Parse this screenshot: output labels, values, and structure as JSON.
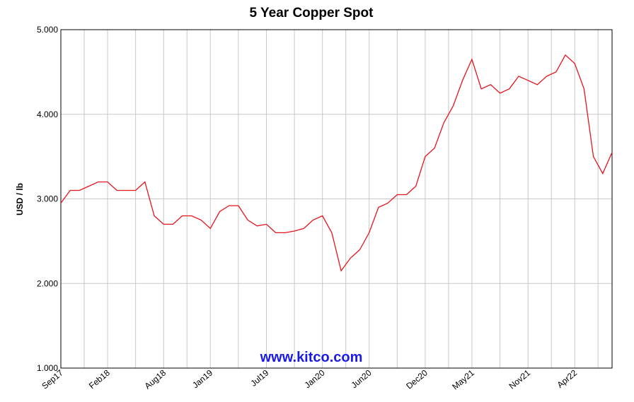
{
  "chart_data": {
    "type": "line",
    "title": "5 Year Copper Spot",
    "y_label": "USD / lb",
    "annotation": "www.kitco.com",
    "color": "#e8141c",
    "grid": true,
    "x": [
      "2017-09",
      "2017-10",
      "2017-11",
      "2017-12",
      "2018-01",
      "2018-02",
      "2018-03",
      "2018-04",
      "2018-05",
      "2018-06",
      "2018-07",
      "2018-08",
      "2018-09",
      "2018-10",
      "2018-11",
      "2018-12",
      "2019-01",
      "2019-02",
      "2019-03",
      "2019-04",
      "2019-05",
      "2019-06",
      "2019-07",
      "2019-08",
      "2019-09",
      "2019-10",
      "2019-11",
      "2019-12",
      "2020-01",
      "2020-02",
      "2020-03",
      "2020-04",
      "2020-05",
      "2020-06",
      "2020-07",
      "2020-08",
      "2020-09",
      "2020-10",
      "2020-11",
      "2020-12",
      "2021-01",
      "2021-02",
      "2021-03",
      "2021-04",
      "2021-05",
      "2021-06",
      "2021-07",
      "2021-08",
      "2021-09",
      "2021-10",
      "2021-11",
      "2021-12",
      "2022-01",
      "2022-02",
      "2022-03",
      "2022-04",
      "2022-05",
      "2022-06",
      "2022-07",
      "2022-08"
    ],
    "values": [
      2.95,
      3.1,
      3.1,
      3.15,
      3.2,
      3.2,
      3.1,
      3.1,
      3.1,
      3.2,
      2.8,
      2.7,
      2.7,
      2.8,
      2.8,
      2.75,
      2.65,
      2.85,
      2.92,
      2.92,
      2.75,
      2.68,
      2.7,
      2.6,
      2.6,
      2.62,
      2.65,
      2.75,
      2.8,
      2.6,
      2.15,
      2.3,
      2.4,
      2.6,
      2.9,
      2.95,
      3.05,
      3.05,
      3.15,
      3.5,
      3.6,
      3.9,
      4.1,
      4.4,
      4.65,
      4.3,
      4.35,
      4.25,
      4.3,
      4.45,
      4.4,
      4.35,
      4.45,
      4.5,
      4.7,
      4.6,
      4.3,
      3.5,
      3.3,
      3.55
    ],
    "xlim": [
      "2017-09",
      "2022-08"
    ],
    "xticks": [
      {
        "value": "2017-09",
        "label": "Sep17"
      },
      {
        "value": "2018-02",
        "label": "Feb18"
      },
      {
        "value": "2018-08",
        "label": "Aug18"
      },
      {
        "value": "2019-01",
        "label": "Jan19"
      },
      {
        "value": "2019-07",
        "label": "Jul19"
      },
      {
        "value": "2020-01",
        "label": "Jan20"
      },
      {
        "value": "2020-06",
        "label": "Jun20"
      },
      {
        "value": "2020-12",
        "label": "Dec20"
      },
      {
        "value": "2021-05",
        "label": "May21"
      },
      {
        "value": "2021-11",
        "label": "Nov21"
      },
      {
        "value": "2022-04",
        "label": "Apr22"
      }
    ],
    "ylim": [
      1,
      5
    ],
    "yticks": [
      {
        "value": 1,
        "label": "1.000"
      },
      {
        "value": 2,
        "label": "2.000"
      },
      {
        "value": 3,
        "label": "3.000"
      },
      {
        "value": 4,
        "label": "4.000"
      },
      {
        "value": 5,
        "label": "5.000"
      }
    ]
  }
}
